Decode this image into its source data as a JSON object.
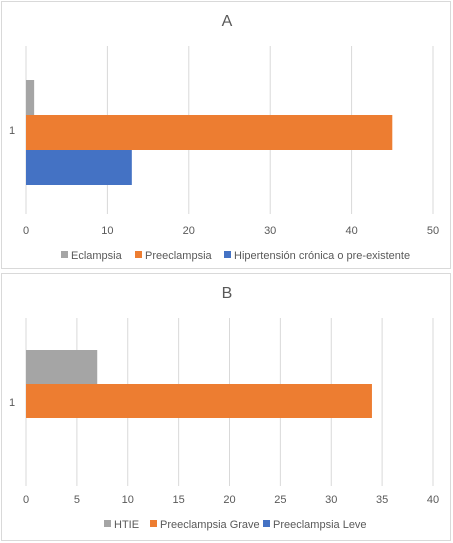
{
  "chart_data": [
    {
      "type": "bar",
      "orientation": "horizontal",
      "title": "A",
      "categories": [
        "1"
      ],
      "xlim": [
        0,
        50
      ],
      "xticks": [
        0,
        10,
        20,
        30,
        40,
        50
      ],
      "grid": true,
      "legend_position": "bottom",
      "series": [
        {
          "name": "Eclampsia",
          "values": [
            1
          ],
          "color": "#a5a5a5"
        },
        {
          "name": "Preeclampsia",
          "values": [
            45
          ],
          "color": "#ed7d31"
        },
        {
          "name": "Hipertensión crónica o pre-existente",
          "values": [
            13
          ],
          "color": "#4472c4"
        }
      ]
    },
    {
      "type": "bar",
      "orientation": "horizontal",
      "title": "B",
      "categories": [
        "1"
      ],
      "xlim": [
        0,
        40
      ],
      "xticks": [
        0,
        5,
        10,
        15,
        20,
        25,
        30,
        35,
        40
      ],
      "grid": true,
      "legend_position": "bottom",
      "series": [
        {
          "name": "HTIE",
          "values": [
            7
          ],
          "color": "#a5a5a5"
        },
        {
          "name": "Preeclampsia Grave",
          "values": [
            34
          ],
          "color": "#ed7d31"
        },
        {
          "name": "Preeclampsia Leve",
          "values": [
            0
          ],
          "color": "#4472c4"
        }
      ]
    }
  ]
}
